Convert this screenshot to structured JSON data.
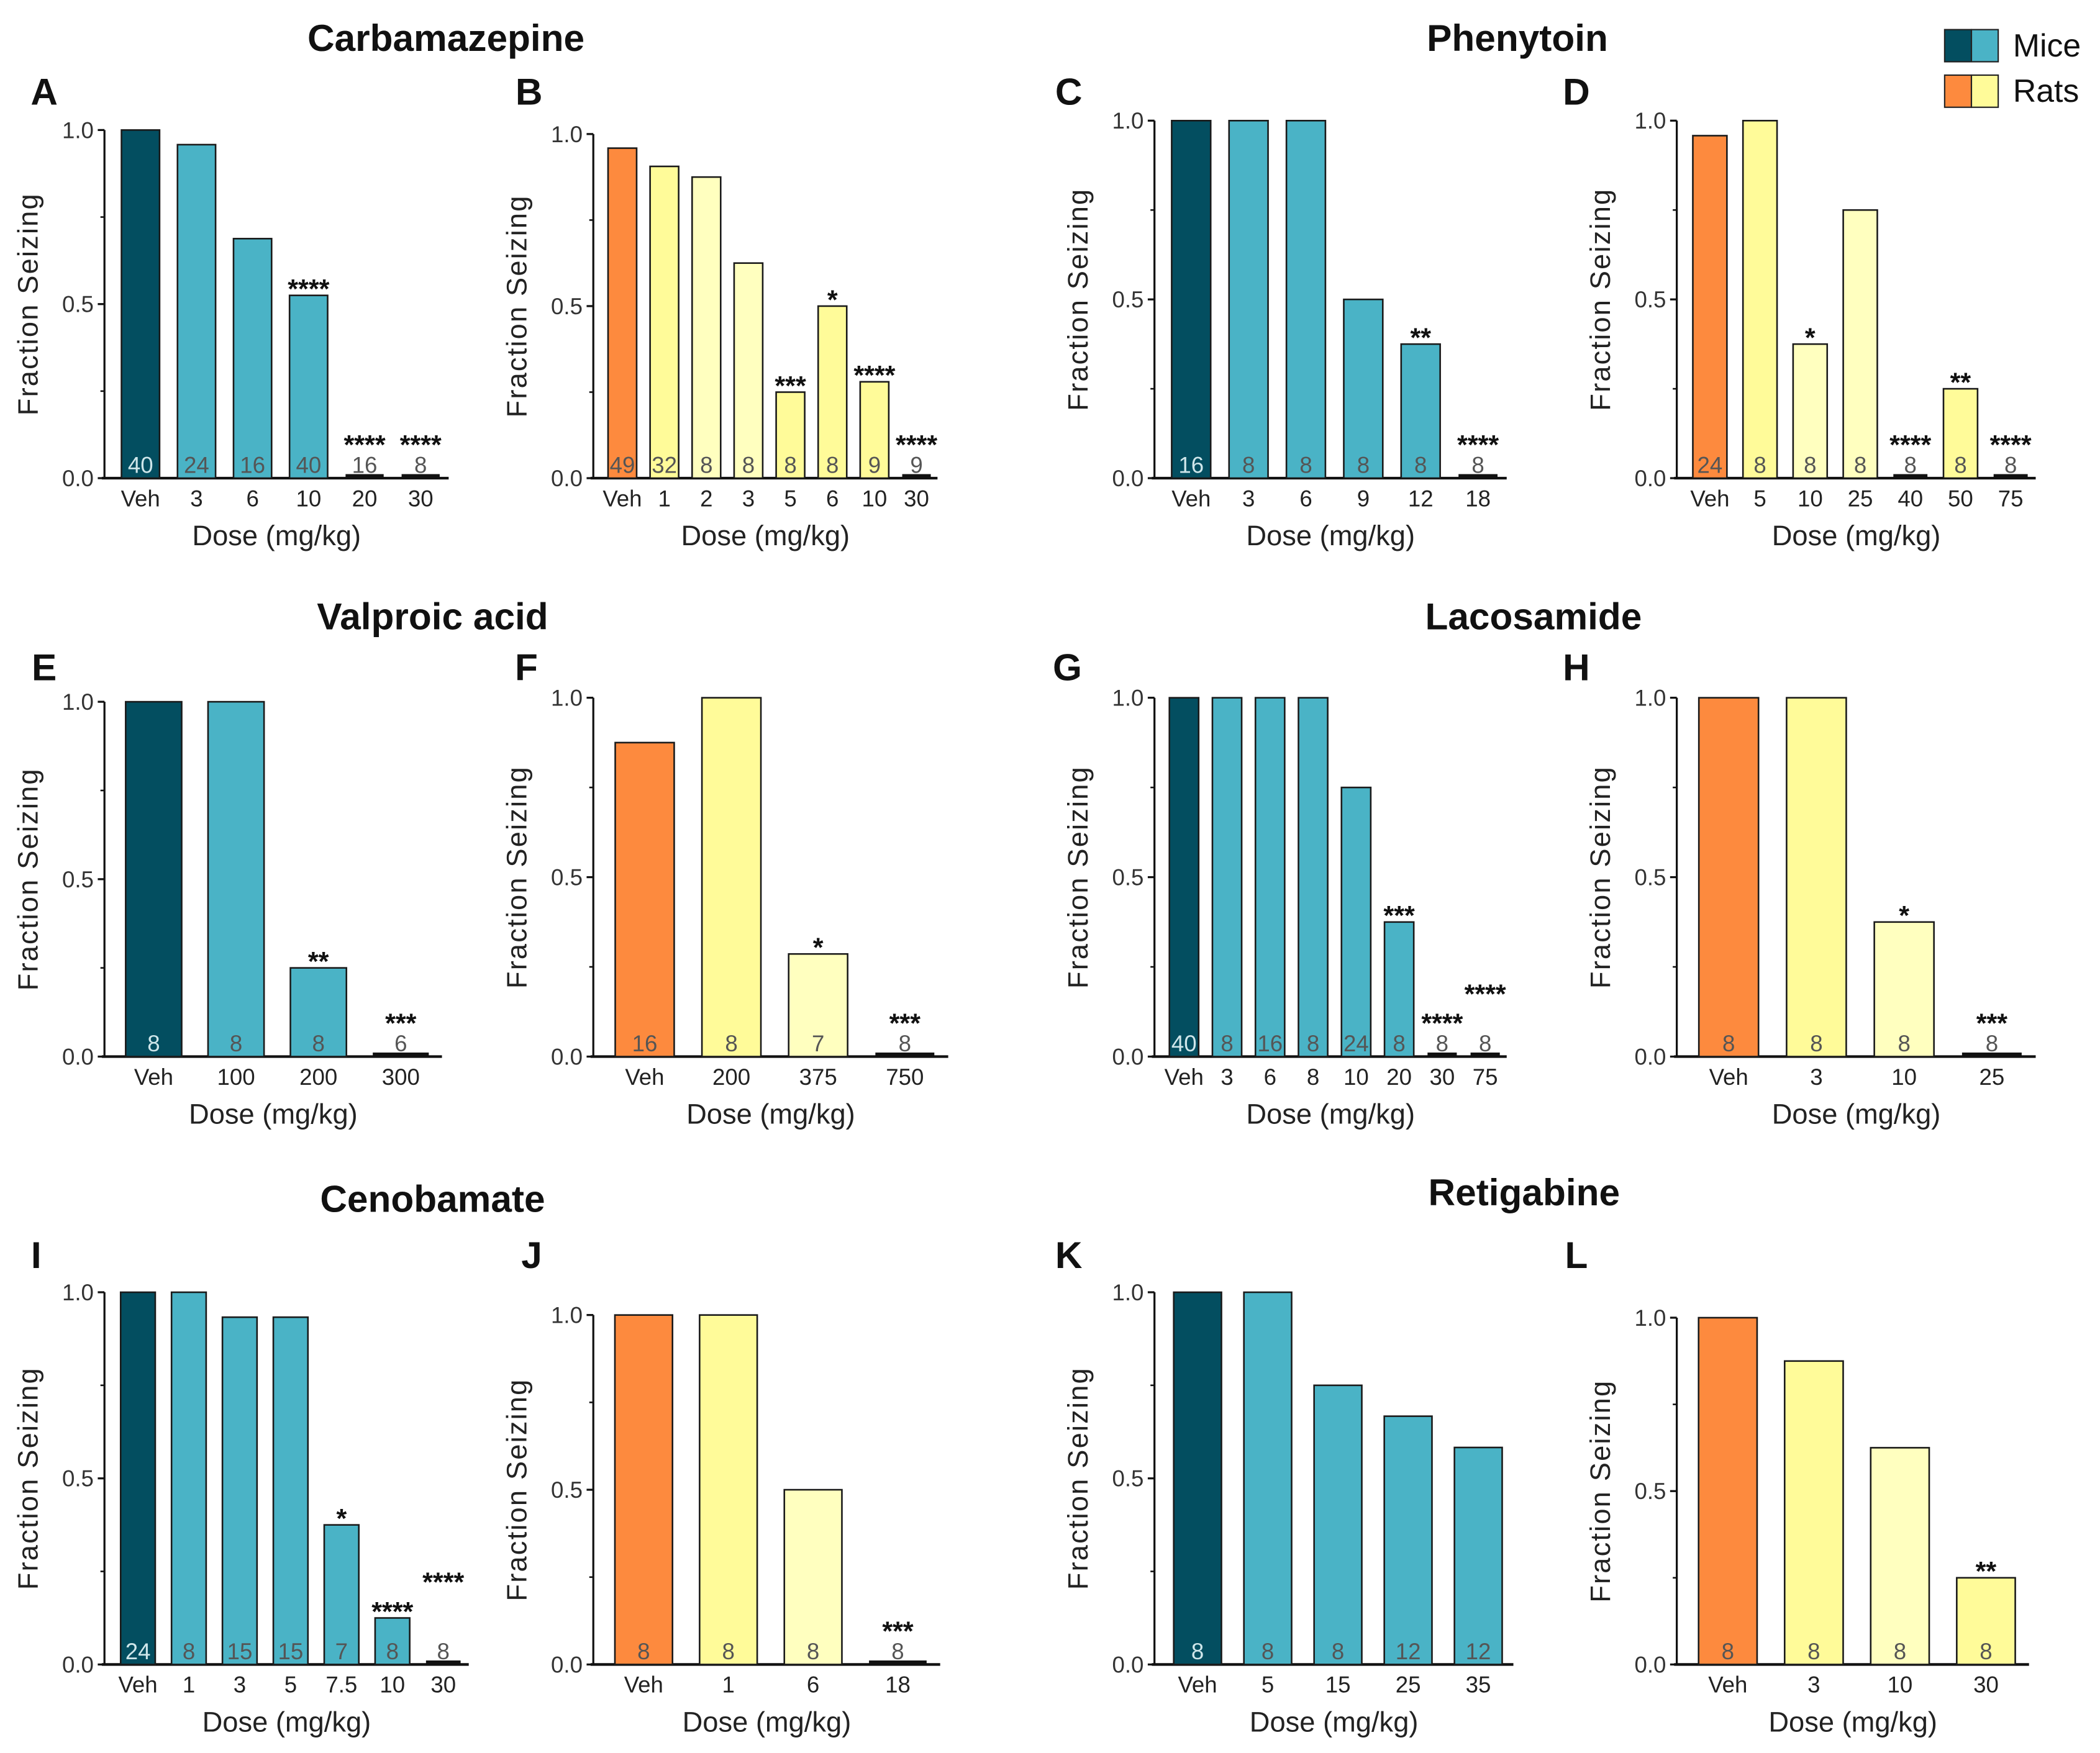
{
  "colors": {
    "mice_veh": "#034e60",
    "mice": "#4ab3c6",
    "rat_veh": "#fd8a3e",
    "rat": "#fffb99",
    "rat_light": "#ffffbf"
  },
  "legend": [
    {
      "label": "Mice",
      "colors": [
        "#034e60",
        "#4ab3c6"
      ]
    },
    {
      "label": "Rats",
      "colors": [
        "#fd8a3e",
        "#fffb99"
      ]
    }
  ],
  "drug_titles": [
    "Carbamazepine",
    "Phenytoin",
    "Valproic acid",
    "Lacosamide",
    "Cenobamate",
    "Retigabine"
  ],
  "chart_data": [
    {
      "panel": "A",
      "type": "bar",
      "ylabel": "Fraction Seizing",
      "xlabel": "Dose (mg/kg)",
      "ylim": [
        0,
        1
      ],
      "yticks": [
        "0.0",
        "0.5",
        "1.0"
      ],
      "categories": [
        "Veh",
        "3",
        "6",
        "10",
        "20",
        "30"
      ],
      "values": [
        1.0,
        0.958,
        0.688,
        0.525,
        0,
        0
      ],
      "n": [
        "40",
        "24",
        "16",
        "40",
        "16",
        "8"
      ],
      "sig": [
        "",
        "",
        "",
        "****",
        "****",
        "****"
      ],
      "fills": [
        "mice_veh",
        "mice",
        "mice",
        "mice",
        "mice",
        "mice"
      ]
    },
    {
      "panel": "B",
      "type": "bar",
      "ylabel": "Fraction Seizing",
      "xlabel": "Dose (mg/kg)",
      "ylim": [
        0,
        1
      ],
      "yticks": [
        "0.0",
        "0.5",
        "1.0"
      ],
      "categories": [
        "Veh",
        "1",
        "2",
        "3",
        "5",
        "6",
        "10",
        "30"
      ],
      "values": [
        0.959,
        0.906,
        0.875,
        0.625,
        0.25,
        0.5,
        0.28,
        0
      ],
      "n": [
        "49",
        "32",
        "8",
        "8",
        "8",
        "8",
        "9",
        "9"
      ],
      "sig": [
        "",
        "",
        "",
        "",
        "***",
        "*",
        "****",
        "****"
      ],
      "fills": [
        "rat_veh",
        "rat",
        "rat_light",
        "rat_light",
        "rat",
        "rat",
        "rat",
        "rat"
      ]
    },
    {
      "panel": "C",
      "type": "bar",
      "ylabel": "Fraction Seizing",
      "xlabel": "Dose (mg/kg)",
      "ylim": [
        0,
        1
      ],
      "yticks": [
        "0.0",
        "0.5",
        "1.0"
      ],
      "categories": [
        "Veh",
        "3",
        "6",
        "9",
        "12",
        "18"
      ],
      "values": [
        1,
        1,
        1,
        0.5,
        0.375,
        0
      ],
      "n": [
        "16",
        "8",
        "8",
        "8",
        "8",
        "8"
      ],
      "sig": [
        "",
        "",
        "",
        "",
        "**",
        "****"
      ],
      "fills": [
        "mice_veh",
        "mice",
        "mice",
        "mice",
        "mice",
        "mice"
      ]
    },
    {
      "panel": "D",
      "type": "bar",
      "ylabel": "Fraction Seizing",
      "xlabel": "Dose (mg/kg)",
      "ylim": [
        0,
        1
      ],
      "yticks": [
        "0.0",
        "0.5",
        "1.0"
      ],
      "categories": [
        "Veh",
        "5",
        "10",
        "25",
        "40",
        "50",
        "75"
      ],
      "values": [
        0.958,
        1,
        0.375,
        0.75,
        0,
        0.25,
        0
      ],
      "n": [
        "24",
        "8",
        "8",
        "8",
        "8",
        "8",
        "8"
      ],
      "sig": [
        "",
        "",
        "*",
        "",
        "****",
        "**",
        "****"
      ],
      "fills": [
        "rat_veh",
        "rat",
        "rat_light",
        "rat_light",
        "rat",
        "rat",
        "rat"
      ]
    },
    {
      "panel": "E",
      "type": "bar",
      "ylabel": "Fraction Seizing",
      "xlabel": "Dose (mg/kg)",
      "ylim": [
        0,
        1
      ],
      "yticks": [
        "0.0",
        "0.5",
        "1.0"
      ],
      "categories": [
        "Veh",
        "100",
        "200",
        "300"
      ],
      "values": [
        1,
        1,
        0.25,
        0
      ],
      "n": [
        "8",
        "8",
        "8",
        "6"
      ],
      "sig": [
        "",
        "",
        "**",
        "***"
      ],
      "fills": [
        "mice_veh",
        "mice",
        "mice",
        "mice"
      ]
    },
    {
      "panel": "F",
      "type": "bar",
      "ylabel": "Fraction Seizing",
      "xlabel": "Dose (mg/kg)",
      "ylim": [
        0,
        1
      ],
      "yticks": [
        "0.0",
        "0.5",
        "1.0"
      ],
      "categories": [
        "Veh",
        "200",
        "375",
        "750"
      ],
      "values": [
        0.875,
        1,
        0.286,
        0
      ],
      "n": [
        "16",
        "8",
        "7",
        "8"
      ],
      "sig": [
        "",
        "",
        "*",
        "***"
      ],
      "fills": [
        "rat_veh",
        "rat",
        "rat_light",
        "rat"
      ]
    },
    {
      "panel": "G",
      "type": "bar",
      "ylabel": "Fraction Seizing",
      "xlabel": "Dose (mg/kg)",
      "ylim": [
        0,
        1
      ],
      "yticks": [
        "0.0",
        "0.5",
        "1.0"
      ],
      "categories": [
        "Veh",
        "3",
        "6",
        "8",
        "10",
        "20",
        "30",
        "75"
      ],
      "values": [
        1,
        1,
        1,
        1,
        0.75,
        0.375,
        0,
        0
      ],
      "n": [
        "40",
        "8",
        "16",
        "8",
        "24",
        "8",
        "8",
        "8"
      ],
      "sig": [
        "",
        "",
        "",
        "",
        "",
        "***",
        "****",
        "****"
      ],
      "fills": [
        "mice_veh",
        "mice",
        "mice",
        "mice",
        "mice",
        "mice",
        "mice",
        "mice"
      ]
    },
    {
      "panel": "H",
      "type": "bar",
      "ylabel": "Fraction Seizing",
      "xlabel": "Dose (mg/kg)",
      "ylim": [
        0,
        1
      ],
      "yticks": [
        "0.0",
        "0.5",
        "1.0"
      ],
      "categories": [
        "Veh",
        "3",
        "10",
        "25"
      ],
      "values": [
        1,
        1,
        0.375,
        0
      ],
      "n": [
        "8",
        "8",
        "8",
        "8"
      ],
      "sig": [
        "",
        "",
        "*",
        "***"
      ],
      "fills": [
        "rat_veh",
        "rat",
        "rat_light",
        "rat"
      ]
    },
    {
      "panel": "I",
      "type": "bar",
      "ylabel": "Fraction Seizing",
      "xlabel": "Dose (mg/kg)",
      "ylim": [
        0,
        1
      ],
      "yticks": [
        "0.0",
        "0.5",
        "1.0"
      ],
      "categories": [
        "Veh",
        "1",
        "3",
        "5",
        "7.5",
        "10",
        "30"
      ],
      "values": [
        1,
        1,
        0.933,
        0.933,
        0.375,
        0.125,
        0
      ],
      "n": [
        "24",
        "8",
        "15",
        "15",
        "7",
        "8",
        "8"
      ],
      "sig": [
        "",
        "",
        "",
        "",
        "*",
        "****",
        "****"
      ],
      "fills": [
        "mice_veh",
        "mice",
        "mice",
        "mice",
        "mice",
        "mice",
        "mice"
      ]
    },
    {
      "panel": "J",
      "type": "bar",
      "ylabel": "Fraction Seizing",
      "xlabel": "Dose (mg/kg)",
      "ylim": [
        0,
        1
      ],
      "yticks": [
        "0.0",
        "0.5",
        "1.0"
      ],
      "categories": [
        "Veh",
        "1",
        "6",
        "18"
      ],
      "values": [
        1,
        1,
        0.5,
        0
      ],
      "n": [
        "8",
        "8",
        "8",
        "8"
      ],
      "sig": [
        "",
        "",
        "",
        "***"
      ],
      "fills": [
        "rat_veh",
        "rat",
        "rat_light",
        "rat"
      ]
    },
    {
      "panel": "K",
      "type": "bar",
      "ylabel": "Fraction Seizing",
      "xlabel": "Dose (mg/kg)",
      "ylim": [
        0,
        1
      ],
      "yticks": [
        "0.0",
        "0.5",
        "1.0"
      ],
      "categories": [
        "Veh",
        "5",
        "15",
        "25",
        "35"
      ],
      "values": [
        1,
        1,
        0.75,
        0.667,
        0.583
      ],
      "n": [
        "8",
        "8",
        "8",
        "12",
        "12"
      ],
      "sig": [
        "",
        "",
        "",
        "",
        ""
      ],
      "fills": [
        "mice_veh",
        "mice",
        "mice",
        "mice",
        "mice"
      ]
    },
    {
      "panel": "L",
      "type": "bar",
      "ylabel": "Fraction Seizing",
      "xlabel": "Dose (mg/kg)",
      "ylim": [
        0,
        1
      ],
      "yticks": [
        "0.0",
        "0.5",
        "1.0"
      ],
      "categories": [
        "Veh",
        "3",
        "10",
        "30"
      ],
      "values": [
        1,
        0.875,
        0.625,
        0.25
      ],
      "n": [
        "8",
        "8",
        "8",
        "8"
      ],
      "sig": [
        "",
        "",
        "",
        "**"
      ],
      "fills": [
        "rat_veh",
        "rat",
        "rat_light",
        "rat"
      ]
    }
  ]
}
